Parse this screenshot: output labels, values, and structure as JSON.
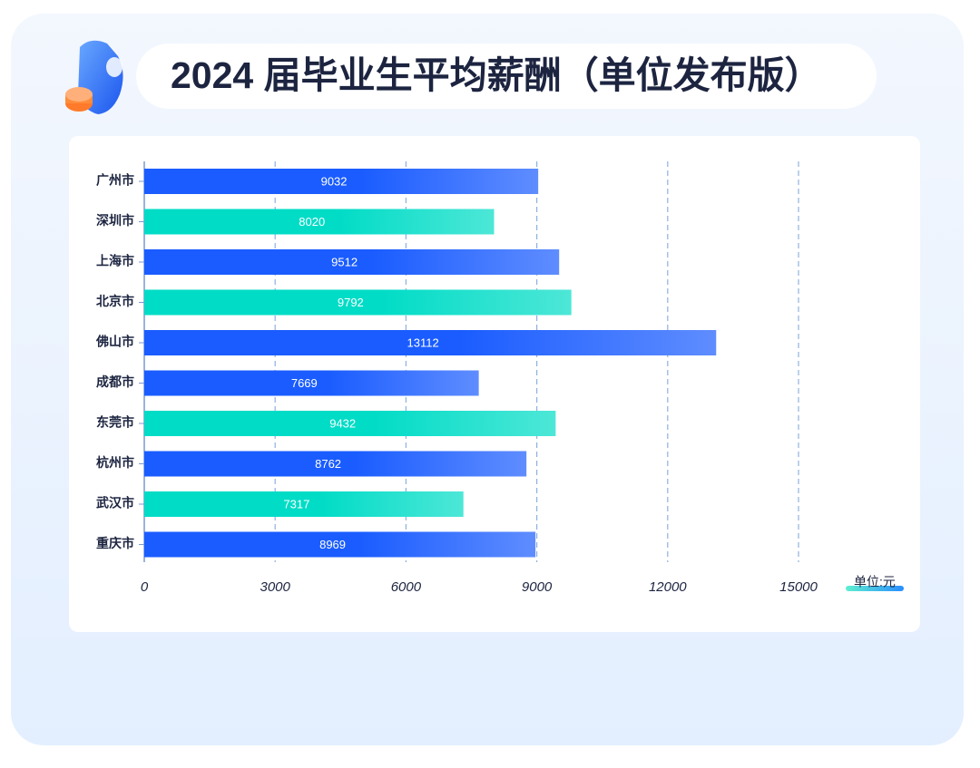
{
  "chart_data": {
    "type": "hbar",
    "title": "2024 届毕业生平均薪酬（单位发布版）",
    "unit_label": "单位:元",
    "categories": [
      "广州市",
      "深圳市",
      "上海市",
      "北京市",
      "佛山市",
      "成都市",
      "东莞市",
      "杭州市",
      "武汉市",
      "重庆市"
    ],
    "values": [
      9032,
      8020,
      9512,
      9792,
      13112,
      7669,
      9432,
      8762,
      7317,
      8969
    ],
    "colors": [
      "#1a5cff",
      "#00dcc6",
      "#1a5cff",
      "#00dcc6",
      "#1a5cff",
      "#1a5cff",
      "#00dcc6",
      "#1a5cff",
      "#00dcc6",
      "#1a5cff"
    ],
    "xlim": [
      0,
      15000
    ],
    "xticks": [
      0,
      3000,
      6000,
      9000,
      12000,
      15000
    ],
    "grid": true
  }
}
